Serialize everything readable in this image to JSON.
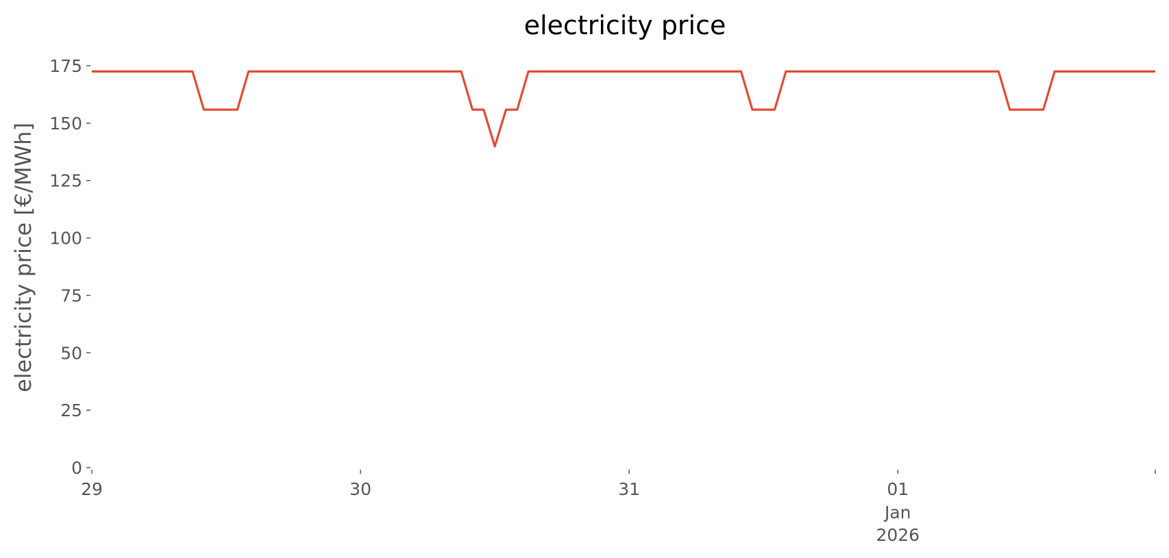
{
  "chart_data": {
    "type": "line",
    "title": "electricity price",
    "xlabel": "",
    "ylabel": "electricity price [€/MWh]",
    "ylim": [
      0,
      180
    ],
    "yticks": [
      0,
      25,
      50,
      75,
      100,
      125,
      150,
      175
    ],
    "xlim": [
      "2025-12-29 00:00",
      "2026-01-01 23:00"
    ],
    "xticks": [
      {
        "x": "2025-12-29 00:00",
        "label": "29",
        "sub": [
          "",
          ""
        ]
      },
      {
        "x": "2025-12-30 00:00",
        "label": "30",
        "sub": [
          "",
          ""
        ]
      },
      {
        "x": "2025-12-31 00:00",
        "label": "31",
        "sub": [
          "",
          ""
        ]
      },
      {
        "x": "2026-01-01 00:00",
        "label": "01",
        "sub": [
          "Jan",
          "2026"
        ]
      }
    ],
    "grid": false,
    "legend": "none",
    "series": [
      {
        "color": "#e24a33",
        "points": [
          {
            "x": "2025-12-29 00:00",
            "y": 172.5
          },
          {
            "x": "2025-12-29 09:00",
            "y": 172.5
          },
          {
            "x": "2025-12-29 10:00",
            "y": 155.9
          },
          {
            "x": "2025-12-29 13:00",
            "y": 155.9
          },
          {
            "x": "2025-12-29 14:00",
            "y": 172.5
          },
          {
            "x": "2025-12-30 09:00",
            "y": 172.5
          },
          {
            "x": "2025-12-30 10:00",
            "y": 155.9
          },
          {
            "x": "2025-12-30 11:00",
            "y": 155.9
          },
          {
            "x": "2025-12-30 12:00",
            "y": 139.9
          },
          {
            "x": "2025-12-30 13:00",
            "y": 155.9
          },
          {
            "x": "2025-12-30 14:00",
            "y": 155.9
          },
          {
            "x": "2025-12-30 15:00",
            "y": 172.5
          },
          {
            "x": "2025-12-31 10:00",
            "y": 172.5
          },
          {
            "x": "2025-12-31 11:00",
            "y": 155.9
          },
          {
            "x": "2025-12-31 13:00",
            "y": 155.9
          },
          {
            "x": "2025-12-31 14:00",
            "y": 172.5
          },
          {
            "x": "2026-01-01 09:00",
            "y": 172.5
          },
          {
            "x": "2026-01-01 10:00",
            "y": 155.9
          },
          {
            "x": "2026-01-01 13:00",
            "y": 155.9
          },
          {
            "x": "2026-01-01 14:00",
            "y": 172.5
          },
          {
            "x": "2026-01-01 23:00",
            "y": 172.5
          }
        ]
      }
    ]
  }
}
